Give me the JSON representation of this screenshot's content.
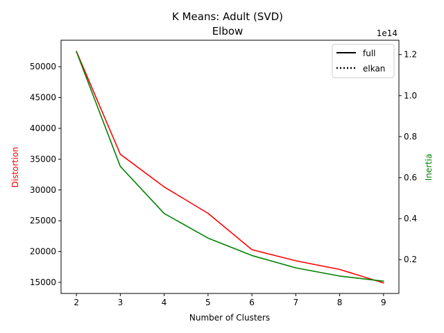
{
  "chart_data": {
    "type": "line",
    "title": "K Means: Adult (SVD)",
    "subtitle": "Elbow",
    "xlabel": "Number of Clusters",
    "ylabel_left": "Distortion",
    "ylabel_right": "Inertia",
    "right_axis_offset": "1e14",
    "x": [
      2,
      3,
      4,
      5,
      6,
      7,
      8,
      9
    ],
    "x_ticks": [
      "2",
      "3",
      "4",
      "5",
      "6",
      "7",
      "8",
      "9"
    ],
    "xlim": [
      1.65,
      9.35
    ],
    "ylim_left": [
      13200,
      54300
    ],
    "ylim_right": [
      0.035,
      1.27
    ],
    "left_ticks": [
      {
        "value": 15000,
        "label": "15000"
      },
      {
        "value": 20000,
        "label": "20000"
      },
      {
        "value": 25000,
        "label": "25000"
      },
      {
        "value": 30000,
        "label": "30000"
      },
      {
        "value": 35000,
        "label": "35000"
      },
      {
        "value": 40000,
        "label": "40000"
      },
      {
        "value": 45000,
        "label": "45000"
      },
      {
        "value": 50000,
        "label": "50000"
      }
    ],
    "right_ticks": [
      {
        "value": 0.2,
        "label": "0.2"
      },
      {
        "value": 0.4,
        "label": "0.4"
      },
      {
        "value": 0.6,
        "label": "0.6"
      },
      {
        "value": 0.8,
        "label": "0.8"
      },
      {
        "value": 1.0,
        "label": "1.0"
      },
      {
        "value": 1.2,
        "label": "1.2"
      }
    ],
    "series": [
      {
        "axis": "left",
        "color": "#ff0000",
        "values": [
          52500,
          35800,
          30500,
          26200,
          20300,
          18500,
          17100,
          14900
        ]
      },
      {
        "axis": "right",
        "color": "#008000",
        "values": [
          1.215,
          0.655,
          0.425,
          0.305,
          0.22,
          0.16,
          0.12,
          0.095
        ]
      }
    ],
    "legend": {
      "position": "top-right",
      "entries": [
        {
          "label": "full",
          "style": "solid"
        },
        {
          "label": "elkan",
          "style": "dotted"
        }
      ]
    },
    "colors": {
      "distortion": "#ff0000",
      "inertia": "#008000",
      "axes": "#000000"
    },
    "grid": false
  }
}
